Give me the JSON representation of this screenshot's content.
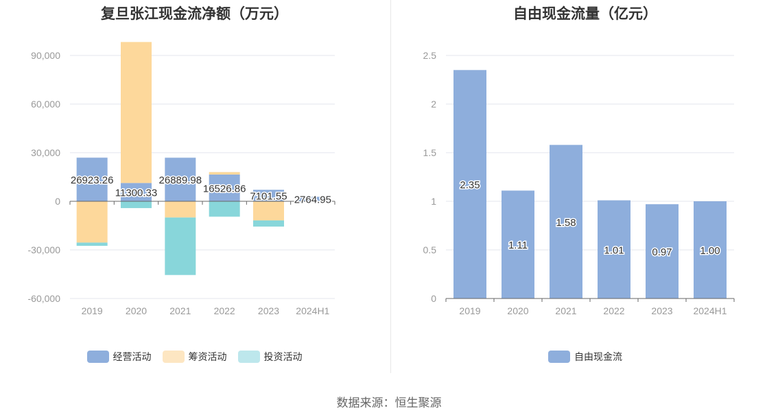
{
  "chart_data": [
    {
      "type": "bar",
      "stacked": true,
      "title": "复旦张江现金流净额（万元）",
      "categories": [
        "2019",
        "2020",
        "2021",
        "2022",
        "2023",
        "2024H1"
      ],
      "series": [
        {
          "name": "经营活动",
          "color": "#8eaedc",
          "values": [
            26923.26,
            11300.33,
            26889.98,
            16526.86,
            7101.55,
            2764.95
          ]
        },
        {
          "name": "筹资活动",
          "color": "#fdd89b",
          "values": [
            -25500,
            87000,
            -10000,
            1500,
            -11800,
            0
          ]
        },
        {
          "name": "投资活动",
          "color": "#88d6da",
          "values": [
            -2000,
            -4200,
            -35500,
            -9500,
            -3800,
            0
          ]
        }
      ],
      "data_labels": [
        "26923.26",
        "11300.33",
        "26889.98",
        "16526.86",
        "7101.55",
        "2764.95"
      ],
      "yticks": [
        "90,000",
        "60,000",
        "30,000",
        "0",
        "-30,000",
        "-60,000"
      ],
      "ylim": [
        -60000,
        90000
      ],
      "grid": true,
      "legend_position": "bottom",
      "legend_colors": [
        "#8eaedc",
        "#fde6c2",
        "#bde7ec"
      ]
    },
    {
      "type": "bar",
      "title": "自由现金流量（亿元）",
      "categories": [
        "2019",
        "2020",
        "2021",
        "2022",
        "2023",
        "2024H1"
      ],
      "series": [
        {
          "name": "自由现金流",
          "color": "#8eaedc",
          "values": [
            2.35,
            1.11,
            1.58,
            1.01,
            0.97,
            1.0
          ]
        }
      ],
      "data_labels": [
        "2.35",
        "1.11",
        "1.58",
        "1.01",
        "0.97",
        "1.00"
      ],
      "yticks": [
        "2.5",
        "2",
        "1.5",
        "1",
        "0.5",
        "0"
      ],
      "ylim": [
        0,
        2.5
      ],
      "grid": true,
      "legend_position": "bottom",
      "legend_colors": [
        "#8eaedc"
      ]
    }
  ],
  "footer": {
    "source": "数据来源：恒生聚源"
  }
}
